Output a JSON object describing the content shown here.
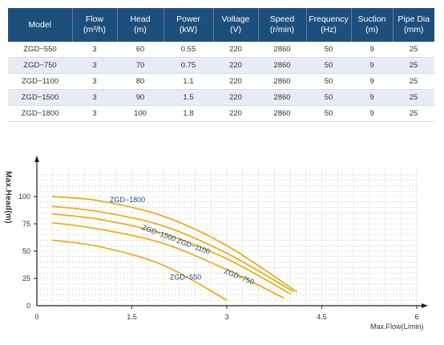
{
  "table": {
    "headers": [
      {
        "line1": "Model",
        "line2": ""
      },
      {
        "line1": "Flow",
        "line2": "(m³/h)"
      },
      {
        "line1": "Head",
        "line2": "(m)"
      },
      {
        "line1": "Power",
        "line2": "(kW)"
      },
      {
        "line1": "Voltage",
        "line2": "(V)"
      },
      {
        "line1": "Speed",
        "line2": "(r/min)"
      },
      {
        "line1": "Frequency",
        "line2": "(Hz)"
      },
      {
        "line1": "Suction",
        "line2": "(m)"
      },
      {
        "line1": "Pipe Dia",
        "line2": "(mm)"
      }
    ],
    "rows": [
      [
        "ZGD−550",
        "3",
        "60",
        "0.55",
        "220",
        "2860",
        "50",
        "9",
        "25"
      ],
      [
        "ZGD−750",
        "3",
        "70",
        "0.75",
        "220",
        "2860",
        "50",
        "9",
        "25"
      ],
      [
        "ZGD−1100",
        "3",
        "80",
        "1.1",
        "220",
        "2860",
        "50",
        "9",
        "25"
      ],
      [
        "ZGD−1500",
        "3",
        "90",
        "1.5",
        "220",
        "2860",
        "50",
        "9",
        "25"
      ],
      [
        "ZGD−1800",
        "3",
        "100",
        "1.8",
        "220",
        "2860",
        "50",
        "9",
        "25"
      ]
    ]
  },
  "chart_data": {
    "type": "line",
    "xlabel": "Max.Flow(L/min)",
    "ylabel": "Max.Head(m)",
    "xticks": [
      "0",
      "1.5",
      "3",
      "4.5",
      "6"
    ],
    "yticks": [
      "0",
      "25",
      "50",
      "75",
      "100"
    ],
    "xlim": [
      0,
      6
    ],
    "ylim": [
      0,
      100
    ],
    "grid": true,
    "line_color": "#e8b020",
    "series": [
      {
        "name": "ZGD−1800",
        "x": [
          0.25,
          1,
          2,
          3,
          4.1
        ],
        "y": [
          100,
          96,
          82,
          55,
          13
        ]
      },
      {
        "name": "ZGD−1500",
        "x": [
          0.25,
          1,
          2,
          3,
          4.05
        ],
        "y": [
          91,
          86,
          73,
          48,
          13
        ]
      },
      {
        "name": "ZGD−1100",
        "x": [
          0.25,
          1,
          2,
          3,
          4.0
        ],
        "y": [
          84,
          79,
          66,
          43,
          11
        ]
      },
      {
        "name": "ZGD−750",
        "x": [
          0.25,
          1,
          2,
          3,
          3.9
        ],
        "y": [
          76,
          70,
          57,
          33,
          7
        ]
      },
      {
        "name": "ZGD−550",
        "x": [
          0.25,
          1,
          2,
          3
        ],
        "y": [
          60,
          54,
          37,
          5
        ]
      }
    ],
    "labels": [
      {
        "text": "ZGD−1800",
        "x": 1.15,
        "y": 95,
        "rotate": 0,
        "color": "#1d4f7c"
      },
      {
        "text": "ZGD−1500",
        "x": 1.65,
        "y": 70,
        "rotate": 20,
        "color": "#1d4f7c"
      },
      {
        "text": "ZGD−1100",
        "x": 2.2,
        "y": 58,
        "rotate": 20,
        "color": "#1d4f7c"
      },
      {
        "text": "ZGD−750",
        "x": 2.95,
        "y": 30,
        "rotate": 22,
        "color": "#1d4f7c"
      },
      {
        "text": "ZGD−550",
        "x": 2.1,
        "y": 24,
        "rotate": 0,
        "color": "#1d4f7c"
      }
    ]
  }
}
